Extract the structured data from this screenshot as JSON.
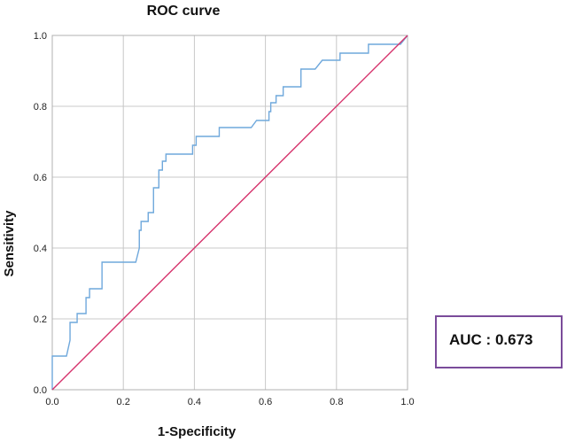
{
  "chart_data": {
    "type": "line",
    "title": "ROC curve",
    "xlabel": "1-Specificity",
    "ylabel": "Sensitivity",
    "xlim": [
      0,
      1
    ],
    "ylim": [
      0,
      1
    ],
    "xticks": [
      "0.0",
      "0.2",
      "0.4",
      "0.6",
      "0.8",
      "1.0"
    ],
    "yticks": [
      "0.0",
      "0.2",
      "0.4",
      "0.6",
      "0.8",
      "1.0"
    ],
    "grid": true,
    "series": [
      {
        "color": "#6fa8dc",
        "x": [
          0,
          0,
          0.04,
          0.05,
          0.05,
          0.07,
          0.07,
          0.095,
          0.095,
          0.105,
          0.105,
          0.14,
          0.14,
          0.235,
          0.245,
          0.245,
          0.25,
          0.25,
          0.27,
          0.27,
          0.285,
          0.285,
          0.3,
          0.3,
          0.31,
          0.31,
          0.32,
          0.32,
          0.395,
          0.395,
          0.405,
          0.405,
          0.47,
          0.47,
          0.56,
          0.575,
          0.61,
          0.61,
          0.615,
          0.615,
          0.63,
          0.63,
          0.65,
          0.65,
          0.7,
          0.7,
          0.74,
          0.76,
          0.76,
          0.81,
          0.81,
          0.89,
          0.89,
          0.98,
          1.0
        ],
        "y": [
          0,
          0.095,
          0.095,
          0.14,
          0.19,
          0.19,
          0.215,
          0.215,
          0.26,
          0.26,
          0.285,
          0.285,
          0.36,
          0.36,
          0.4,
          0.45,
          0.45,
          0.475,
          0.475,
          0.5,
          0.5,
          0.57,
          0.57,
          0.62,
          0.62,
          0.645,
          0.645,
          0.665,
          0.665,
          0.69,
          0.69,
          0.715,
          0.715,
          0.74,
          0.74,
          0.76,
          0.76,
          0.785,
          0.785,
          0.81,
          0.81,
          0.83,
          0.83,
          0.855,
          0.855,
          0.905,
          0.905,
          0.93,
          0.93,
          0.93,
          0.95,
          0.95,
          0.975,
          0.975,
          1.0
        ]
      },
      {
        "color": "#d6336c",
        "x": [
          0,
          1
        ],
        "y": [
          0,
          1
        ]
      }
    ],
    "annotation": "AUC : 0.673"
  }
}
